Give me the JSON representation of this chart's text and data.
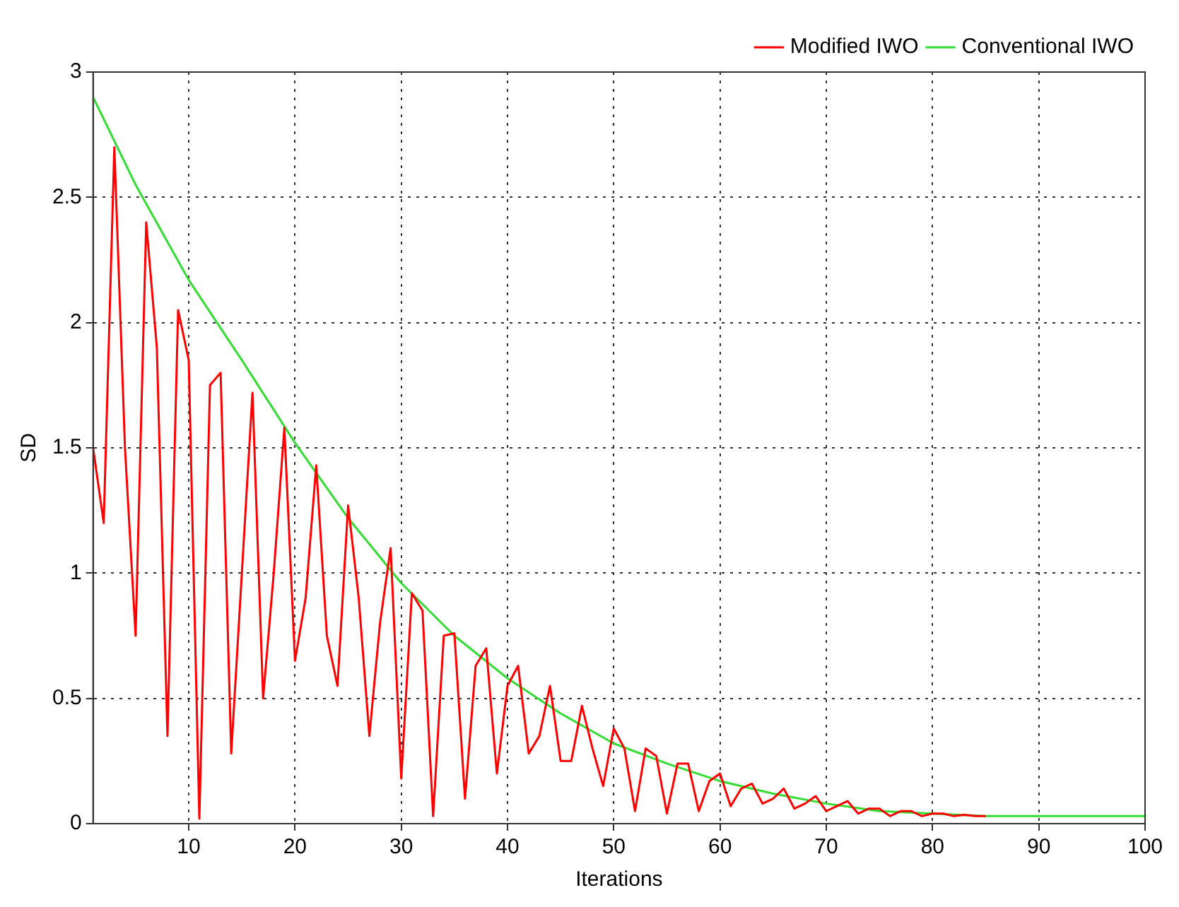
{
  "chart_data": {
    "type": "line",
    "xlabel": "Iterations",
    "ylabel": "SD",
    "xlim": [
      1,
      100
    ],
    "ylim": [
      0,
      3
    ],
    "xticks": [
      10,
      20,
      30,
      40,
      50,
      60,
      70,
      80,
      90,
      100
    ],
    "yticks": [
      0,
      0.5,
      1,
      1.5,
      2,
      2.5,
      3
    ],
    "grid": true,
    "legend": "top right",
    "marker": "none",
    "line_style": "solid",
    "series": [
      {
        "name": "Modified IWO",
        "color": "#ff0000",
        "x": [
          1,
          2,
          3,
          4,
          5,
          6,
          7,
          8,
          9,
          10,
          11,
          12,
          13,
          14,
          15,
          16,
          17,
          18,
          19,
          20,
          21,
          22,
          23,
          24,
          25,
          26,
          27,
          28,
          29,
          30,
          31,
          32,
          33,
          34,
          35,
          36,
          37,
          38,
          39,
          40,
          41,
          42,
          43,
          44,
          45,
          46,
          47,
          48,
          49,
          50,
          51,
          52,
          53,
          54,
          55,
          56,
          57,
          58,
          59,
          60,
          61,
          62,
          63,
          64,
          65,
          66,
          67,
          68,
          69,
          70,
          71,
          72,
          73,
          74,
          75,
          76,
          77,
          78,
          79,
          80,
          81,
          82,
          83,
          84,
          85
        ],
        "values": [
          1.5,
          1.2,
          2.7,
          1.5,
          0.75,
          2.4,
          1.9,
          0.35,
          2.05,
          1.85,
          0.02,
          1.75,
          1.8,
          0.28,
          1.0,
          1.72,
          0.5,
          1.0,
          1.58,
          0.65,
          0.9,
          1.43,
          0.75,
          0.55,
          1.27,
          0.9,
          0.35,
          0.8,
          1.1,
          0.18,
          0.92,
          0.85,
          0.03,
          0.75,
          0.76,
          0.1,
          0.63,
          0.7,
          0.2,
          0.55,
          0.63,
          0.28,
          0.35,
          0.55,
          0.25,
          0.25,
          0.47,
          0.3,
          0.15,
          0.38,
          0.3,
          0.05,
          0.3,
          0.27,
          0.04,
          0.24,
          0.24,
          0.05,
          0.17,
          0.2,
          0.07,
          0.14,
          0.16,
          0.08,
          0.1,
          0.14,
          0.06,
          0.08,
          0.11,
          0.05,
          0.07,
          0.09,
          0.04,
          0.06,
          0.06,
          0.03,
          0.05,
          0.05,
          0.03,
          0.04,
          0.04,
          0.03,
          0.035,
          0.03,
          0.03
        ]
      },
      {
        "name": "Conventional IWO",
        "color": "#33dd33",
        "x": [
          1,
          5,
          10,
          15,
          20,
          25,
          30,
          35,
          40,
          45,
          50,
          55,
          60,
          65,
          70,
          75,
          80,
          85,
          90,
          95,
          100
        ],
        "values": [
          2.9,
          2.55,
          2.17,
          1.85,
          1.52,
          1.22,
          0.96,
          0.75,
          0.58,
          0.44,
          0.32,
          0.24,
          0.17,
          0.12,
          0.08,
          0.05,
          0.04,
          0.03,
          0.03,
          0.03,
          0.03
        ]
      }
    ]
  }
}
